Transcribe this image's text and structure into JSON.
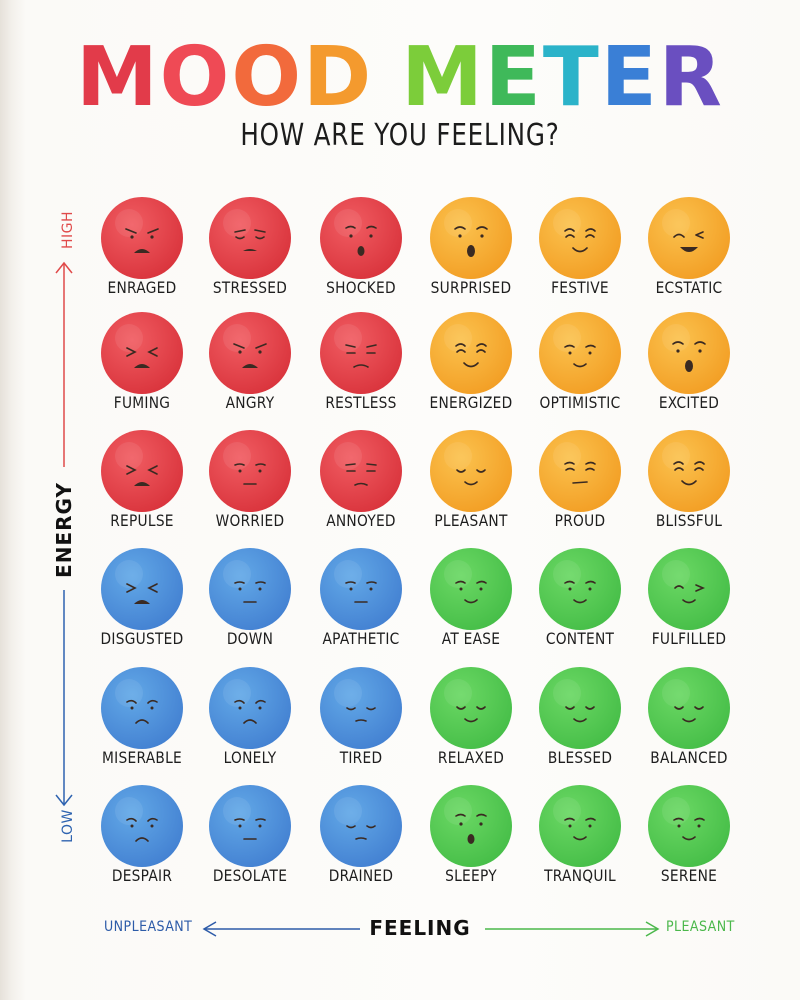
{
  "title": {
    "letters": [
      {
        "char": "M",
        "color": "#e23b4a"
      },
      {
        "char": "O",
        "color": "#ef4a55"
      },
      {
        "char": "O",
        "color": "#f26a3c"
      },
      {
        "char": "D",
        "color": "#f49a2e"
      },
      {
        "char": " ",
        "color": "#ffffff"
      },
      {
        "char": "M",
        "color": "#7ccd3a"
      },
      {
        "char": "E",
        "color": "#3fb95a"
      },
      {
        "char": "T",
        "color": "#2bb3c9"
      },
      {
        "char": "E",
        "color": "#3a7fd6"
      },
      {
        "char": "R",
        "color": "#6a4fc0"
      }
    ]
  },
  "subtitle": "HOW ARE YOU FEELING?",
  "axes": {
    "y_label": "ENERGY",
    "y_high": "HIGH",
    "y_low": "LOW",
    "x_label": "FEELING",
    "x_left": "UNPLEASANT",
    "x_right": "PLEASANT"
  },
  "colors": {
    "red": "#ea3d44",
    "yellow": "#f7ad2c",
    "blue": "#4a93dc",
    "green": "#4fc94f",
    "high_arrow": "#e04a4a",
    "low_arrow": "#2e63b0",
    "unpleasant": "#2d5ba8",
    "pleasant": "#4bb84b"
  },
  "grid": [
    [
      {
        "label": "ENRAGED",
        "color": "red",
        "mood": "angry"
      },
      {
        "label": "STRESSED",
        "color": "red",
        "mood": "stressed"
      },
      {
        "label": "SHOCKED",
        "color": "red",
        "mood": "shocked"
      },
      {
        "label": "SURPRISED",
        "color": "yellow",
        "mood": "surprised"
      },
      {
        "label": "FESTIVE",
        "color": "yellow",
        "mood": "happy"
      },
      {
        "label": "ECSTATIC",
        "color": "yellow",
        "mood": "ecstatic"
      }
    ],
    [
      {
        "label": "FUMING",
        "color": "red",
        "mood": "fuming"
      },
      {
        "label": "ANGRY",
        "color": "red",
        "mood": "angry"
      },
      {
        "label": "RESTLESS",
        "color": "red",
        "mood": "restless"
      },
      {
        "label": "ENERGIZED",
        "color": "yellow",
        "mood": "happy"
      },
      {
        "label": "OPTIMISTIC",
        "color": "yellow",
        "mood": "content"
      },
      {
        "label": "EXCITED",
        "color": "yellow",
        "mood": "surprised"
      }
    ],
    [
      {
        "label": "REPULSE",
        "color": "red",
        "mood": "fuming"
      },
      {
        "label": "WORRIED",
        "color": "red",
        "mood": "flat"
      },
      {
        "label": "ANNOYED",
        "color": "red",
        "mood": "annoyed"
      },
      {
        "label": "PLEASANT",
        "color": "yellow",
        "mood": "calm"
      },
      {
        "label": "PROUD",
        "color": "yellow",
        "mood": "smirk"
      },
      {
        "label": "BLISSFUL",
        "color": "yellow",
        "mood": "happy"
      }
    ],
    [
      {
        "label": "DISGUSTED",
        "color": "blue",
        "mood": "fuming"
      },
      {
        "label": "DOWN",
        "color": "blue",
        "mood": "flat"
      },
      {
        "label": "APATHETIC",
        "color": "blue",
        "mood": "flat"
      },
      {
        "label": "AT EASE",
        "color": "green",
        "mood": "content"
      },
      {
        "label": "CONTENT",
        "color": "green",
        "mood": "content"
      },
      {
        "label": "FULFILLED",
        "color": "green",
        "mood": "wink"
      }
    ],
    [
      {
        "label": "MISERABLE",
        "color": "blue",
        "mood": "sad"
      },
      {
        "label": "LONELY",
        "color": "blue",
        "mood": "sad"
      },
      {
        "label": "TIRED",
        "color": "blue",
        "mood": "tired"
      },
      {
        "label": "RELAXED",
        "color": "green",
        "mood": "calm"
      },
      {
        "label": "BLESSED",
        "color": "green",
        "mood": "calm"
      },
      {
        "label": "BALANCED",
        "color": "green",
        "mood": "calm"
      }
    ],
    [
      {
        "label": "DESPAIR",
        "color": "blue",
        "mood": "sad"
      },
      {
        "label": "DESOLATE",
        "color": "blue",
        "mood": "flat"
      },
      {
        "label": "DRAINED",
        "color": "blue",
        "mood": "tired"
      },
      {
        "label": "SLEEPY",
        "color": "green",
        "mood": "shocked"
      },
      {
        "label": "TRANQUIL",
        "color": "green",
        "mood": "content"
      },
      {
        "label": "SERENE",
        "color": "green",
        "mood": "content"
      }
    ]
  ]
}
